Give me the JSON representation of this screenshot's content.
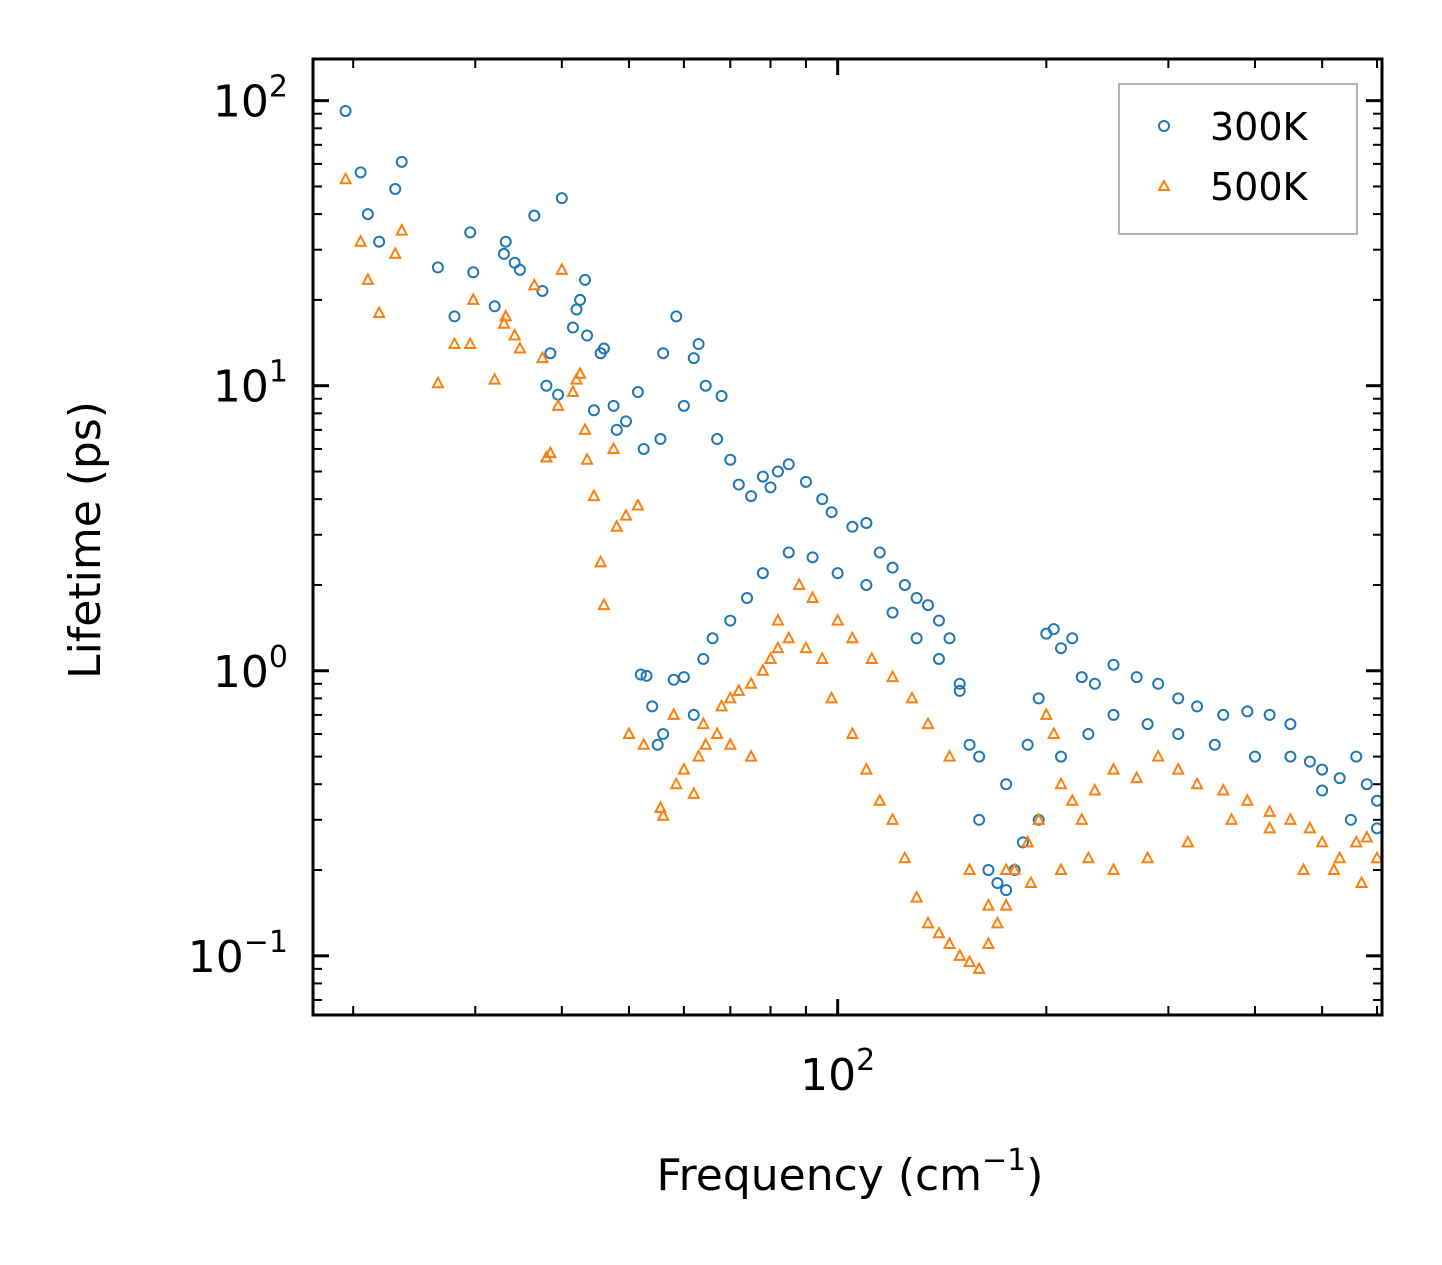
{
  "chart_data": {
    "type": "scatter",
    "xscale": "log",
    "yscale": "log",
    "xlabel": "Frequency (cm",
    "xlabel_sup": "−1",
    "xlabel_end": ")",
    "ylabel": "Lifetime (ps)",
    "xlim": [
      17.5,
      610
    ],
    "ylim": [
      0.062,
      140
    ],
    "x_ticks": [
      {
        "value": 100,
        "base": "10",
        "exp": "2"
      }
    ],
    "y_ticks": [
      {
        "value": 0.1,
        "base": "10",
        "exp": "−1"
      },
      {
        "value": 1,
        "base": "10",
        "exp": "0"
      },
      {
        "value": 10,
        "base": "10",
        "exp": "1"
      },
      {
        "value": 100,
        "base": "10",
        "exp": "2"
      }
    ],
    "legend_position": "top-right",
    "series": [
      {
        "name": "300K",
        "marker": "circle",
        "color": "#1f77b4",
        "points": [
          [
            19.5,
            92
          ],
          [
            20.5,
            56
          ],
          [
            21,
            40
          ],
          [
            21.8,
            32
          ],
          [
            23,
            49
          ],
          [
            23.5,
            61
          ],
          [
            26.5,
            26
          ],
          [
            28,
            17.5
          ],
          [
            29.5,
            34.5
          ],
          [
            29.8,
            25
          ],
          [
            32,
            19
          ],
          [
            33,
            29
          ],
          [
            33.2,
            32
          ],
          [
            34.2,
            27
          ],
          [
            34.8,
            25.5
          ],
          [
            36.5,
            39.5
          ],
          [
            37.5,
            21.5
          ],
          [
            38.5,
            13
          ],
          [
            38,
            10
          ],
          [
            39.5,
            9.3
          ],
          [
            40,
            45.5
          ],
          [
            41.5,
            16
          ],
          [
            42,
            18.5
          ],
          [
            42.5,
            20
          ],
          [
            43.2,
            23.5
          ],
          [
            43.5,
            15
          ],
          [
            44.5,
            8.2
          ],
          [
            45.5,
            13
          ],
          [
            46,
            13.5
          ],
          [
            47.5,
            8.5
          ],
          [
            48,
            7
          ],
          [
            49.5,
            7.5
          ],
          [
            51.5,
            9.5
          ],
          [
            52.5,
            6
          ],
          [
            55.5,
            6.5
          ],
          [
            56,
            13
          ],
          [
            58.5,
            17.5
          ],
          [
            60,
            8.5
          ],
          [
            62,
            12.5
          ],
          [
            63,
            14
          ],
          [
            64.5,
            10
          ],
          [
            67,
            6.5
          ],
          [
            68,
            9.2
          ],
          [
            70,
            5.5
          ],
          [
            72,
            4.5
          ],
          [
            75,
            4.1
          ],
          [
            78,
            4.8
          ],
          [
            80,
            4.4
          ],
          [
            82,
            5
          ],
          [
            85,
            5.3
          ],
          [
            90,
            4.6
          ],
          [
            95,
            4
          ],
          [
            98,
            3.6
          ],
          [
            105,
            3.2
          ],
          [
            110,
            3.3
          ],
          [
            115,
            2.6
          ],
          [
            120,
            2.3
          ],
          [
            125,
            2
          ],
          [
            130,
            1.8
          ],
          [
            135,
            1.7
          ],
          [
            140,
            1.5
          ],
          [
            145,
            1.3
          ],
          [
            150,
            0.9
          ],
          [
            155,
            0.55
          ],
          [
            160,
            0.3
          ],
          [
            165,
            0.2
          ],
          [
            170,
            0.18
          ],
          [
            175,
            0.17
          ],
          [
            180,
            0.2
          ],
          [
            188,
            0.55
          ],
          [
            195,
            0.8
          ],
          [
            200,
            1.35
          ],
          [
            205,
            1.4
          ],
          [
            210,
            1.2
          ],
          [
            218,
            1.3
          ],
          [
            225,
            0.95
          ],
          [
            235,
            0.9
          ],
          [
            250,
            1.05
          ],
          [
            270,
            0.95
          ],
          [
            290,
            0.9
          ],
          [
            310,
            0.8
          ],
          [
            330,
            0.75
          ],
          [
            360,
            0.7
          ],
          [
            390,
            0.72
          ],
          [
            420,
            0.7
          ],
          [
            450,
            0.65
          ],
          [
            480,
            0.48
          ],
          [
            500,
            0.45
          ],
          [
            530,
            0.42
          ],
          [
            560,
            0.5
          ],
          [
            580,
            0.4
          ],
          [
            600,
            0.35
          ],
          [
            52,
            0.97
          ],
          [
            53,
            0.96
          ],
          [
            54,
            0.75
          ],
          [
            55,
            0.55
          ],
          [
            56,
            0.6
          ],
          [
            58,
            0.93
          ],
          [
            60,
            0.95
          ],
          [
            62,
            0.7
          ],
          [
            64,
            1.1
          ],
          [
            66,
            1.3
          ],
          [
            70,
            1.5
          ],
          [
            74,
            1.8
          ],
          [
            78,
            2.2
          ],
          [
            85,
            2.6
          ],
          [
            92,
            2.5
          ],
          [
            100,
            2.2
          ],
          [
            110,
            2
          ],
          [
            120,
            1.6
          ],
          [
            130,
            1.3
          ],
          [
            140,
            1.1
          ],
          [
            150,
            0.85
          ],
          [
            160,
            0.5
          ],
          [
            175,
            0.4
          ],
          [
            185,
            0.25
          ],
          [
            195,
            0.3
          ],
          [
            210,
            0.5
          ],
          [
            230,
            0.6
          ],
          [
            250,
            0.7
          ],
          [
            280,
            0.65
          ],
          [
            310,
            0.6
          ],
          [
            350,
            0.55
          ],
          [
            400,
            0.5
          ],
          [
            450,
            0.5
          ],
          [
            500,
            0.38
          ],
          [
            550,
            0.3
          ],
          [
            600,
            0.28
          ]
        ]
      },
      {
        "name": "500K",
        "marker": "triangle",
        "color": "#ff7f0e",
        "points": [
          [
            19.5,
            53
          ],
          [
            20.5,
            32
          ],
          [
            21,
            23.5
          ],
          [
            21.8,
            18
          ],
          [
            23,
            29
          ],
          [
            23.5,
            35
          ],
          [
            26.5,
            10.2
          ],
          [
            28,
            14
          ],
          [
            29.5,
            14
          ],
          [
            29.8,
            20
          ],
          [
            32,
            10.5
          ],
          [
            33,
            16.5
          ],
          [
            33.2,
            17.5
          ],
          [
            34.2,
            15
          ],
          [
            34.8,
            13.5
          ],
          [
            36.5,
            22.5
          ],
          [
            37.5,
            12.5
          ],
          [
            38.5,
            5.8
          ],
          [
            38,
            5.6
          ],
          [
            39.5,
            8.5
          ],
          [
            40,
            25.5
          ],
          [
            41.5,
            9.5
          ],
          [
            42,
            10.5
          ],
          [
            42.5,
            11
          ],
          [
            43.2,
            7
          ],
          [
            43.5,
            5.5
          ],
          [
            44.5,
            4.1
          ],
          [
            45.5,
            2.4
          ],
          [
            46,
            1.7
          ],
          [
            47.5,
            6
          ],
          [
            48,
            3.2
          ],
          [
            49.5,
            3.5
          ],
          [
            51.5,
            3.8
          ],
          [
            52.5,
            0.55
          ],
          [
            55.5,
            0.33
          ],
          [
            56,
            0.31
          ],
          [
            58.5,
            0.4
          ],
          [
            60,
            0.45
          ],
          [
            62,
            0.37
          ],
          [
            63,
            0.5
          ],
          [
            64.5,
            0.55
          ],
          [
            67,
            0.6
          ],
          [
            68,
            0.75
          ],
          [
            70,
            0.8
          ],
          [
            72,
            0.85
          ],
          [
            75,
            0.9
          ],
          [
            78,
            1.0
          ],
          [
            80,
            1.1
          ],
          [
            82,
            1.2
          ],
          [
            85,
            1.3
          ],
          [
            90,
            1.2
          ],
          [
            95,
            1.1
          ],
          [
            98,
            0.8
          ],
          [
            105,
            0.6
          ],
          [
            110,
            0.45
          ],
          [
            115,
            0.35
          ],
          [
            120,
            0.3
          ],
          [
            125,
            0.22
          ],
          [
            130,
            0.16
          ],
          [
            135,
            0.13
          ],
          [
            140,
            0.12
          ],
          [
            145,
            0.11
          ],
          [
            150,
            0.1
          ],
          [
            155,
            0.095
          ],
          [
            160,
            0.09
          ],
          [
            165,
            0.11
          ],
          [
            170,
            0.13
          ],
          [
            175,
            0.15
          ],
          [
            180,
            0.2
          ],
          [
            188,
            0.25
          ],
          [
            195,
            0.3
          ],
          [
            200,
            0.7
          ],
          [
            205,
            0.6
          ],
          [
            210,
            0.4
          ],
          [
            218,
            0.35
          ],
          [
            225,
            0.3
          ],
          [
            235,
            0.38
          ],
          [
            250,
            0.45
          ],
          [
            270,
            0.42
          ],
          [
            290,
            0.5
          ],
          [
            310,
            0.45
          ],
          [
            330,
            0.4
          ],
          [
            360,
            0.38
          ],
          [
            390,
            0.35
          ],
          [
            420,
            0.32
          ],
          [
            450,
            0.3
          ],
          [
            480,
            0.28
          ],
          [
            500,
            0.25
          ],
          [
            530,
            0.22
          ],
          [
            560,
            0.25
          ],
          [
            580,
            0.26
          ],
          [
            600,
            0.22
          ],
          [
            50,
            0.6
          ],
          [
            58,
            0.7
          ],
          [
            64,
            0.65
          ],
          [
            70,
            0.55
          ],
          [
            75,
            0.5
          ],
          [
            82,
            1.5
          ],
          [
            88,
            2
          ],
          [
            92,
            1.8
          ],
          [
            100,
            1.5
          ],
          [
            105,
            1.3
          ],
          [
            112,
            1.1
          ],
          [
            120,
            0.95
          ],
          [
            128,
            0.8
          ],
          [
            135,
            0.65
          ],
          [
            145,
            0.5
          ],
          [
            155,
            0.2
          ],
          [
            165,
            0.15
          ],
          [
            175,
            0.2
          ],
          [
            190,
            0.18
          ],
          [
            210,
            0.2
          ],
          [
            230,
            0.22
          ],
          [
            250,
            0.2
          ],
          [
            280,
            0.22
          ],
          [
            320,
            0.25
          ],
          [
            370,
            0.3
          ],
          [
            420,
            0.28
          ],
          [
            470,
            0.2
          ],
          [
            520,
            0.2
          ],
          [
            570,
            0.18
          ]
        ]
      }
    ]
  }
}
